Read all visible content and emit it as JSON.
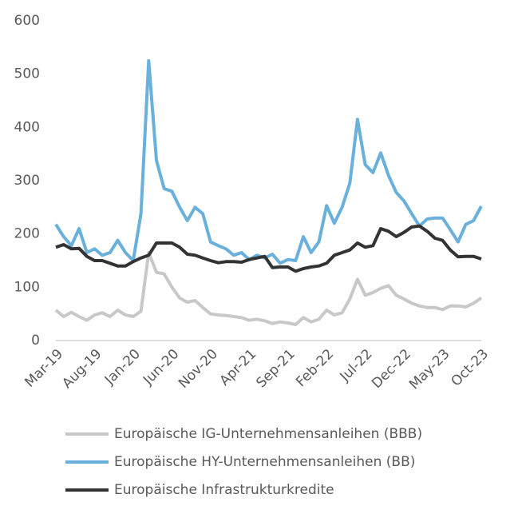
{
  "chart_data": {
    "type": "line",
    "categories": [
      "Mar-19",
      null,
      null,
      null,
      null,
      "Aug-19",
      null,
      null,
      null,
      null,
      "Jan-20",
      null,
      null,
      null,
      null,
      "Jun-20",
      null,
      null,
      null,
      null,
      "Nov-20",
      null,
      null,
      null,
      null,
      "Apr-21",
      null,
      null,
      null,
      null,
      "Sep-21",
      null,
      null,
      null,
      null,
      "Feb-22",
      null,
      null,
      null,
      null,
      "Jul-22",
      null,
      null,
      null,
      null,
      "Dec-22",
      null,
      null,
      null,
      null,
      "May-23",
      null,
      null,
      null,
      null,
      "Oct-23"
    ],
    "series": [
      {
        "name": "Europäische IG-Unternehmensanleihen (BBB)",
        "color": "#c8c8c8",
        "values": [
          57,
          45,
          53,
          45,
          38,
          48,
          52,
          45,
          57,
          48,
          45,
          55,
          165,
          128,
          125,
          100,
          80,
          72,
          75,
          62,
          50,
          48,
          47,
          45,
          43,
          38,
          40,
          37,
          32,
          35,
          33,
          30,
          43,
          35,
          40,
          57,
          48,
          52,
          78,
          115,
          85,
          90,
          98,
          103,
          85,
          78,
          70,
          65,
          62,
          62,
          58,
          65,
          65,
          63,
          70,
          80
        ]
      },
      {
        "name": "Europäische HY-Unternehmensanleihen (BB)",
        "color": "#6ab0dc",
        "values": [
          218,
          195,
          178,
          210,
          165,
          172,
          160,
          165,
          188,
          165,
          150,
          238,
          525,
          338,
          285,
          280,
          250,
          225,
          250,
          238,
          185,
          178,
          172,
          160,
          165,
          152,
          160,
          155,
          162,
          145,
          152,
          150,
          195,
          165,
          185,
          253,
          220,
          250,
          295,
          415,
          330,
          315,
          352,
          310,
          278,
          262,
          238,
          215,
          228,
          230,
          230,
          208,
          185,
          218,
          225,
          252
        ]
      },
      {
        "name": "Europäische Infrastrukturkredite",
        "color": "#333333",
        "values": [
          175,
          180,
          172,
          173,
          158,
          150,
          150,
          145,
          140,
          140,
          148,
          155,
          160,
          183,
          183,
          183,
          175,
          162,
          160,
          155,
          150,
          146,
          148,
          148,
          147,
          152,
          155,
          158,
          137,
          138,
          138,
          130,
          135,
          138,
          140,
          145,
          160,
          165,
          170,
          183,
          175,
          178,
          210,
          205,
          195,
          203,
          213,
          215,
          205,
          192,
          188,
          170,
          157,
          158,
          158,
          153
        ]
      }
    ],
    "ylim": [
      0,
      600
    ],
    "yticks": [
      0,
      100,
      200,
      300,
      400,
      500,
      600
    ]
  }
}
